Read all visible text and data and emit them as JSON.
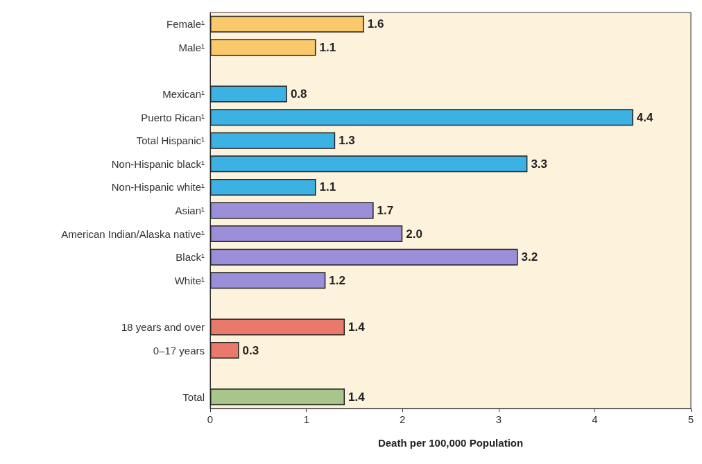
{
  "chart_data": {
    "type": "bar",
    "orientation": "horizontal",
    "xlabel": "Death per 100,000 Population",
    "categories": [
      "Female¹",
      "Male¹",
      null,
      "Mexican¹",
      "Puerto Rican¹",
      "Total Hispanic¹",
      "Non-Hispanic black¹",
      "Non-Hispanic white¹",
      "Asian¹",
      "American Indian/Alaska native¹",
      "Black¹",
      "White¹",
      null,
      "18 years and over",
      "0–17 years",
      null,
      "Total"
    ],
    "values": [
      1.6,
      1.1,
      null,
      0.8,
      4.4,
      1.3,
      3.3,
      1.1,
      1.7,
      2.0,
      3.2,
      1.2,
      null,
      1.4,
      0.3,
      null,
      1.4
    ],
    "value_labels": [
      "1.6",
      "1.1",
      null,
      "0.8",
      "4.4",
      "1.3",
      "3.3",
      "1.1",
      "1.7",
      "2.0",
      "3.2",
      "1.2",
      null,
      "1.4",
      "0.3",
      null,
      "1.4"
    ],
    "colors": [
      "#f9c96b",
      "#f9c96b",
      null,
      "#3cb2e4",
      "#3cb2e4",
      "#3cb2e4",
      "#3cb2e4",
      "#3cb2e4",
      "#9a8fd8",
      "#9a8fd8",
      "#9a8fd8",
      "#9a8fd8",
      null,
      "#e9796b",
      "#e9796b",
      null,
      "#a8c68c"
    ],
    "xlim": [
      0,
      5
    ],
    "xticks": [
      0,
      1,
      2,
      3,
      4,
      5
    ],
    "grid": false
  }
}
